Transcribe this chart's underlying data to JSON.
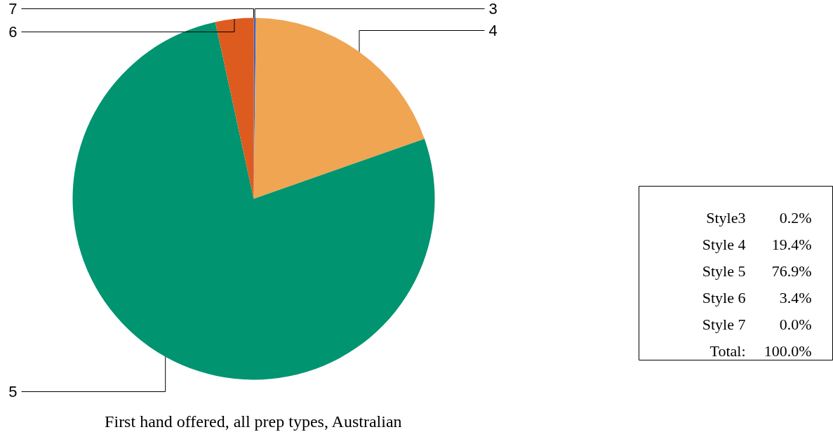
{
  "chart_data": {
    "type": "pie",
    "title": "First hand offered, all prep types, Australian",
    "categories": [
      "3",
      "4",
      "5",
      "6",
      "7"
    ],
    "values": [
      0.2,
      19.4,
      76.9,
      3.4,
      0.0
    ],
    "colors": [
      "#3f5fbf",
      "#f0a552",
      "#009470",
      "#dd5b1f",
      "#7b3fa0"
    ],
    "annotations": [
      "Style3 0.2%",
      "Style 4 19.4%",
      "Style 5 76.9%",
      "Style 6 3.4%",
      "Style 7 0.0%",
      "Total: 100.0%"
    ]
  }
}
